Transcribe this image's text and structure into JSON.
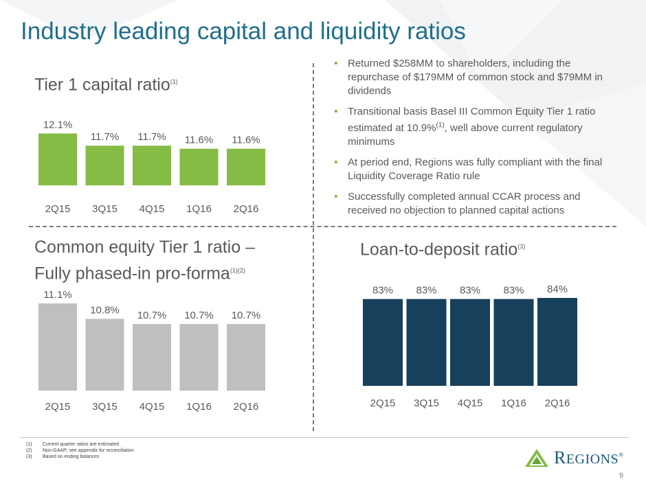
{
  "title": "Industry leading capital and liquidity ratios",
  "tier1": {
    "title": "Tier 1 capital ratio",
    "sup": "(1)",
    "labels": [
      "12.1%",
      "11.7%",
      "11.7%",
      "11.6%",
      "11.6%"
    ]
  },
  "cet1": {
    "title_line1": "Common equity Tier 1 ratio –",
    "title_line2": "Fully phased-in pro-forma",
    "sup": "(1)(2)",
    "labels": [
      "11.1%",
      "10.8%",
      "10.7%",
      "10.7%",
      "10.7%"
    ]
  },
  "ltd": {
    "title": "Loan-to-deposit ratio",
    "sup": "(3)",
    "labels": [
      "83%",
      "83%",
      "83%",
      "83%",
      "84%"
    ]
  },
  "bullets": [
    {
      "text": "Returned $258MM to shareholders, including the repurchase of $179MM of common stock and $79MM in dividends"
    },
    {
      "text_a": "Transitional basis Basel III Common Equity Tier 1 ratio estimated at 10.9%",
      "sup": "(1)",
      "text_b": ", well above current regulatory minimums"
    },
    {
      "text": "At period end, Regions was fully compliant with the final Liquidity Coverage Ratio rule"
    },
    {
      "text": "Successfully completed annual CCAR process and received no objection to planned capital actions"
    }
  ],
  "footnotes": [
    {
      "num": "(1)",
      "text": "Current quarter ratios are estimated"
    },
    {
      "num": "(2)",
      "text": "Non-GAAP; see appendix for reconciliation"
    },
    {
      "num": "(3)",
      "text": "Based on ending balances"
    }
  ],
  "logo": {
    "text_big": "R",
    "text_small": "EGIONS",
    "mark": "®"
  },
  "page_number": "9",
  "colors": {
    "green": "#84bc45",
    "gray": "#bfbfbf",
    "navy": "#17405c",
    "title": "#1f6e8c"
  },
  "chart_data": [
    {
      "type": "bar",
      "title": "Tier 1 capital ratio",
      "categories": [
        "2Q15",
        "3Q15",
        "4Q15",
        "1Q16",
        "2Q16"
      ],
      "values": [
        12.1,
        11.7,
        11.7,
        11.6,
        11.6
      ],
      "data_labels": [
        "12.1%",
        "11.7%",
        "11.7%",
        "11.6%",
        "11.6%"
      ],
      "color": "#84bc45",
      "ylim": [
        10.4,
        12.2
      ]
    },
    {
      "type": "bar",
      "title": "Common equity Tier 1 ratio – Fully phased-in pro-forma",
      "categories": [
        "2Q15",
        "3Q15",
        "4Q15",
        "1Q16",
        "2Q16"
      ],
      "values": [
        11.1,
        10.8,
        10.7,
        10.7,
        10.7
      ],
      "data_labels": [
        "11.1%",
        "10.8%",
        "10.7%",
        "10.7%",
        "10.7%"
      ],
      "color": "#bfbfbf",
      "ylim": [
        9.4,
        11.1
      ]
    },
    {
      "type": "bar",
      "title": "Loan-to-deposit ratio",
      "categories": [
        "2Q15",
        "3Q15",
        "4Q15",
        "1Q16",
        "2Q16"
      ],
      "values": [
        83,
        83,
        83,
        83,
        84
      ],
      "data_labels": [
        "83%",
        "83%",
        "83%",
        "83%",
        "84%"
      ],
      "color": "#17405c",
      "ylim": [
        0,
        84
      ]
    }
  ]
}
